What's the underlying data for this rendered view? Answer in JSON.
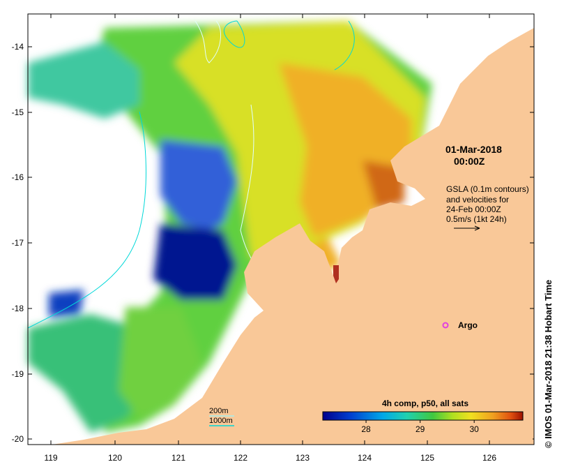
{
  "map": {
    "lon_ticks": [
      "119",
      "120",
      "121",
      "122",
      "123",
      "124",
      "125",
      "126"
    ],
    "lat_ticks": [
      "-14",
      "-15",
      "-16",
      "-17",
      "-18",
      "-19",
      "-20"
    ],
    "lon_range": [
      118.6,
      126.8
    ],
    "lat_range": [
      -20.1,
      -13.5
    ]
  },
  "annotations": {
    "composite_date_line1": "01-Mar-2018",
    "composite_date_line2": "00:00Z",
    "gsla_line1": "GSLA (0.1m contours)",
    "gsla_line2": "and velocities for",
    "gsla_line3": "24-Feb 00:00Z",
    "gsla_line4": "0.5m/s (1kt 24h)",
    "argo_label": "Argo",
    "contour_200": "200m",
    "contour_1000": "1000m"
  },
  "colorbar": {
    "title": "4h comp, p50, all sats",
    "ticks": [
      "28",
      "29",
      "30"
    ],
    "tick_values": [
      28,
      29,
      30
    ],
    "range": [
      27.2,
      30.9
    ]
  },
  "credit": "© IMOS 01-Mar-2018 21:38 Hobart Time",
  "colors": {
    "land": "#f9c898",
    "contour_200": "#a6f0f0",
    "contour_1000": "#00d8d8",
    "argo": "#e040e0",
    "river_mouth": "#b03020"
  }
}
